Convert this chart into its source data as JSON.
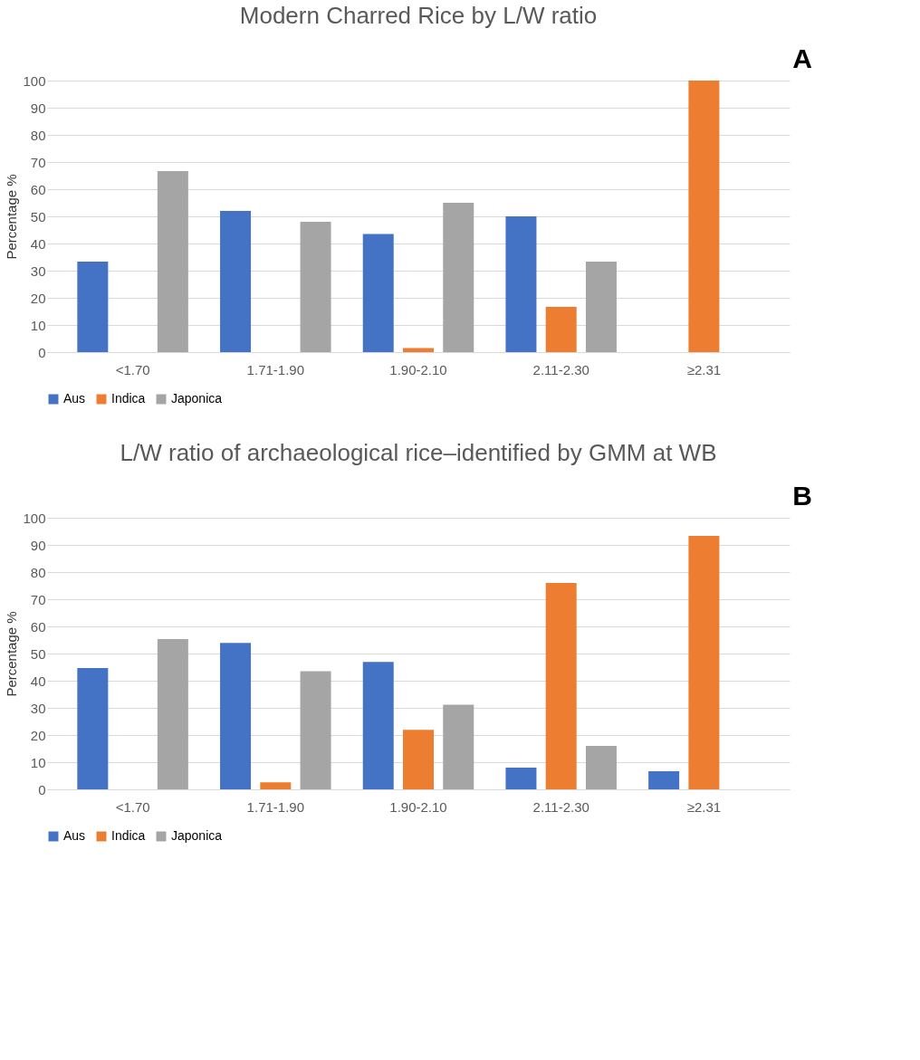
{
  "chart_data": [
    {
      "type": "bar",
      "title": "Modern Charred Rice by L/W ratio",
      "ylabel": "Percentage %",
      "categories": [
        "<1.70",
        "1.71-1.90",
        "1.90-2.10",
        "2.11-2.30",
        "≥2.31"
      ],
      "series": [
        {
          "name": "Aus",
          "color": "#4472c4",
          "values": [
            33.3,
            52,
            43.5,
            50,
            0
          ]
        },
        {
          "name": "Indica",
          "color": "#ed7d31",
          "values": [
            0,
            0,
            1.5,
            16.7,
            100
          ]
        },
        {
          "name": "Japonica",
          "color": "#a5a5a5",
          "values": [
            66.7,
            48,
            55,
            33.3,
            0
          ]
        }
      ],
      "ylim": [
        0,
        100
      ],
      "yticks": [
        0,
        10,
        20,
        30,
        40,
        50,
        60,
        70,
        80,
        90,
        100
      ],
      "grid": "y",
      "legend": "bottom",
      "annotations": [
        "A"
      ]
    },
    {
      "type": "bar",
      "title": "L/W ratio of archaeological rice–identified by GMM at WB",
      "ylabel": "Percentage %",
      "categories": [
        "<1.70",
        "1.71-1.90",
        "1.90-2.10",
        "2.11-2.30",
        "≥2.31"
      ],
      "series": [
        {
          "name": "Aus",
          "color": "#4472c4",
          "values": [
            44.7,
            53.9,
            46.9,
            8,
            6.7
          ]
        },
        {
          "name": "Indica",
          "color": "#ed7d31",
          "values": [
            0,
            2.6,
            21.9,
            76,
            93.3
          ]
        },
        {
          "name": "Japonica",
          "color": "#a5a5a5",
          "values": [
            55.3,
            43.5,
            31.2,
            16,
            0
          ]
        }
      ],
      "ylim": [
        0,
        100
      ],
      "yticks": [
        0,
        10,
        20,
        30,
        40,
        50,
        60,
        70,
        80,
        90,
        100
      ],
      "grid": "y",
      "legend": "bottom",
      "annotations": [
        "B"
      ]
    }
  ]
}
